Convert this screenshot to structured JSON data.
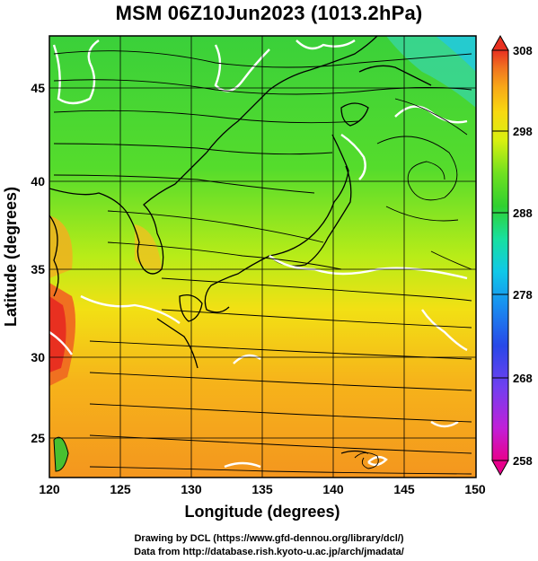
{
  "title": "MSM 06Z10Jun2023 (1013.2hPa)",
  "map": {
    "xlabel": "Longitude (degrees)",
    "ylabel": "Latitude  (degrees)",
    "x_ticks": [
      "120",
      "125",
      "130",
      "135",
      "140",
      "145",
      "150"
    ],
    "y_ticks": [
      "25",
      "30",
      "35",
      "40",
      "45"
    ],
    "lon_range": [
      120,
      150
    ],
    "lat_range": [
      22.5,
      47.5
    ],
    "field": "temperature (K) shaded, surface wind streamlines, white freezing/contour lines"
  },
  "colorbar": {
    "tick_labels": [
      "308",
      "298",
      "288",
      "278",
      "268",
      "258"
    ],
    "range": [
      258,
      308
    ],
    "colors": [
      "#e8008c",
      "#c020d8",
      "#7040f0",
      "#2848e8",
      "#1890f0",
      "#10c8e8",
      "#18e0a0",
      "#30d030",
      "#70e020",
      "#d8f010",
      "#f8d810",
      "#f8a818",
      "#f07020",
      "#e83020"
    ]
  },
  "footer": {
    "line1": "Drawing by DCL (https://www.gfd-dennou.org/library/dcl/)",
    "line2": "Data from http://database.rish.kyoto-u.ac.jp/arch/jmadata/"
  }
}
